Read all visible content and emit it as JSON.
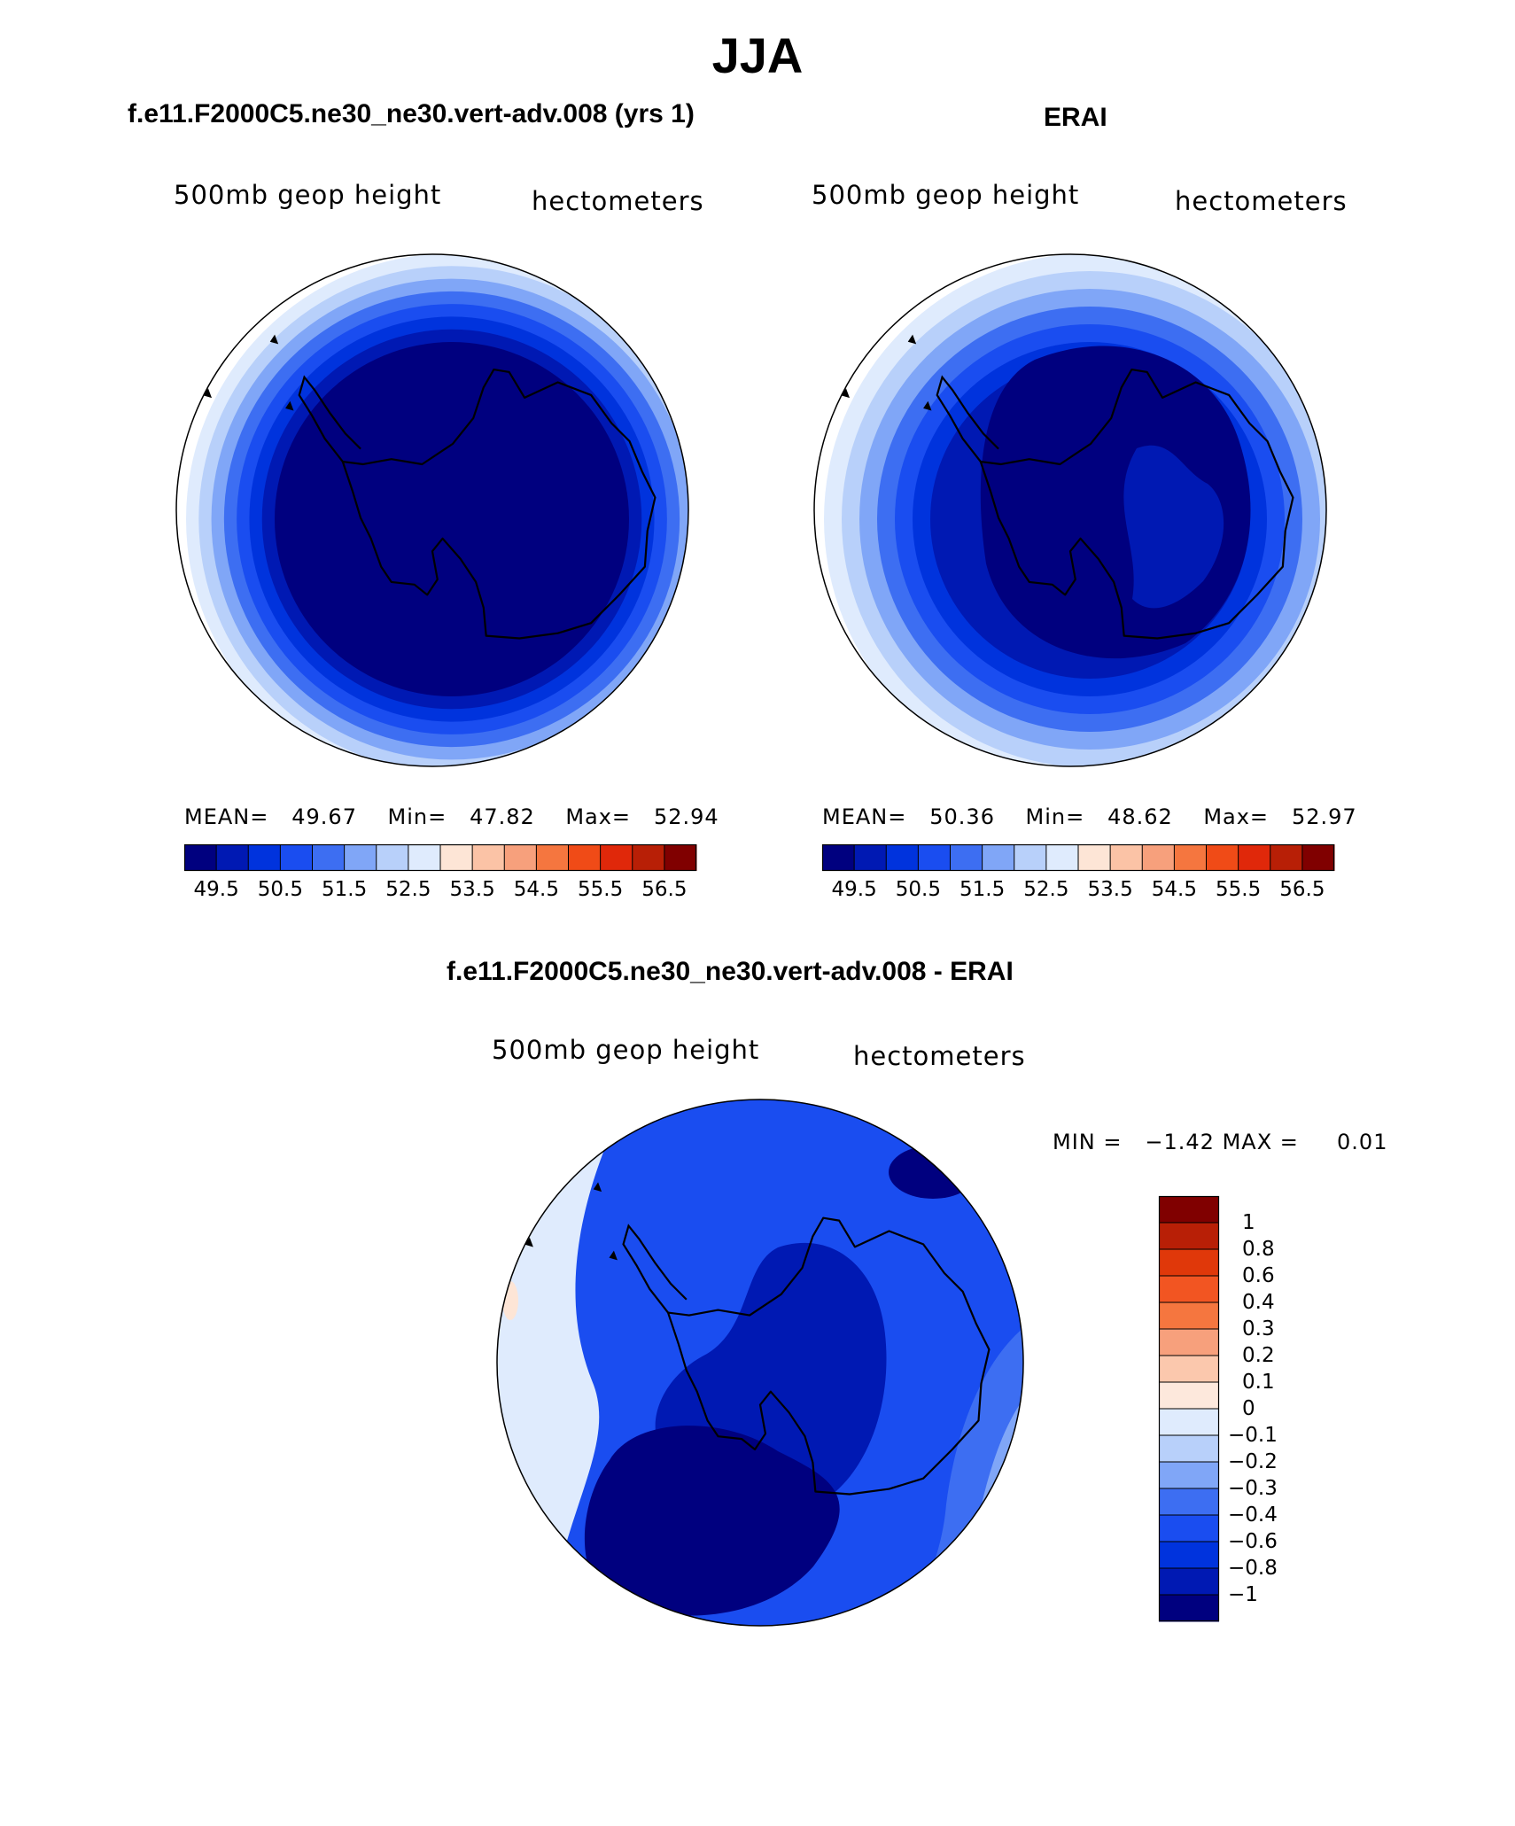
{
  "title": "JJA",
  "panels": [
    {
      "id": "model",
      "title": "f.e11.F2000C5.ne30_ne30.vert-adv.008 (yrs 1)",
      "variable": "500mb geop height",
      "units": "hectometers",
      "stats": {
        "mean_label": "MEAN=",
        "mean": "49.67",
        "min_label": "Min=",
        "min": "47.82",
        "max_label": "Max=",
        "max": "52.94"
      }
    },
    {
      "id": "obs",
      "title": "ERAI",
      "variable": "500mb geop height",
      "units": "hectometers",
      "stats": {
        "mean_label": "MEAN=",
        "mean": "50.36",
        "min_label": "Min=",
        "min": "48.62",
        "max_label": "Max=",
        "max": "52.97"
      }
    }
  ],
  "colorbar_main": {
    "colors": [
      "#00007f",
      "#0019b3",
      "#0033dd",
      "#1a4df0",
      "#3d6ef2",
      "#80a6f7",
      "#b8d0fa",
      "#dfebfd",
      "#fde5d6",
      "#fbc3a6",
      "#f7a07c",
      "#f5763f",
      "#f04b17",
      "#e0280a",
      "#b81f06",
      "#800000"
    ],
    "labels": [
      "49.5",
      "50.5",
      "51.5",
      "52.5",
      "53.5",
      "54.5",
      "55.5",
      "56.5"
    ]
  },
  "difference": {
    "title": "f.e11.F2000C5.ne30_ne30.vert-adv.008 - ERAI",
    "variable": "500mb geop height",
    "units": "hectometers",
    "stats": {
      "min_label": "MIN =",
      "min": "−1.42",
      "max_label": "MAX =",
      "max": "0.01"
    },
    "colorbar": {
      "colors": [
        "#800000",
        "#b81f06",
        "#e0380a",
        "#f25522",
        "#f5763f",
        "#f7a07c",
        "#fbc8ad",
        "#fde8dc",
        "#dfebfd",
        "#b8d0fa",
        "#80a6f7",
        "#3d6ef2",
        "#1a4df0",
        "#0033dd",
        "#0019b3",
        "#00007f"
      ],
      "labels": [
        "1",
        "0.8",
        "0.6",
        "0.4",
        "0.3",
        "0.2",
        "0.1",
        "0",
        "−0.1",
        "−0.2",
        "−0.3",
        "−0.4",
        "−0.6",
        "−0.8",
        "−1"
      ]
    }
  },
  "map_fills": {
    "model_rings": [
      "#dfebfd",
      "#b8d0fa",
      "#80a6f7",
      "#3d6ef2",
      "#1a4df0",
      "#0033dd",
      "#0019b3",
      "#00007f"
    ],
    "obs_rings": [
      "#dfebfd",
      "#b8d0fa",
      "#80a6f7",
      "#3d6ef2",
      "#1a4df0",
      "#0033dd",
      "#0019b3"
    ],
    "obs_core": "#00007f",
    "obs_lobe": "#0019b3",
    "diff_base": "#1a4df0",
    "diff_low": "#00007f",
    "diff_mid": "#0019b3",
    "diff_west": [
      "#dfebfd",
      "#b8d0fa",
      "#80a6f7",
      "#3d6ef2"
    ],
    "diff_east": [
      "#80a6f7",
      "#3d6ef2"
    ],
    "diff_pos": "#fde5d6",
    "coast": "#000000"
  }
}
